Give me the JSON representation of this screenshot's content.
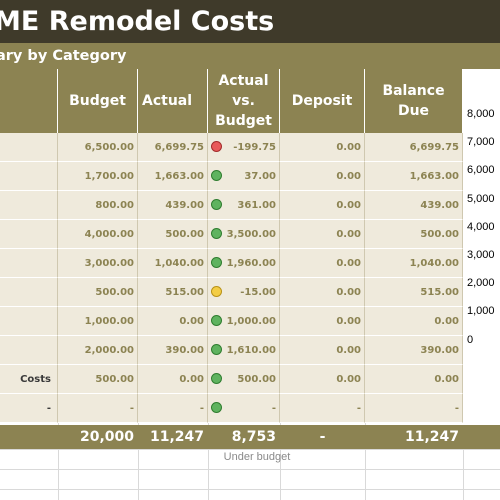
{
  "title": "ME Remodel Costs",
  "subtitle": "ary by Category",
  "headers": {
    "budget": "Budget",
    "actual": "Actual",
    "actual_vs_budget_1": "Actual",
    "actual_vs_budget_2": "vs.",
    "actual_vs_budget_3": "Budget",
    "deposit": "Deposit",
    "balance_due": "Balance Due"
  },
  "rows": [
    {
      "label": "",
      "budget": "6,500.00",
      "actual": "6,699.75",
      "status": "red",
      "variance": "-199.75",
      "deposit": "0.00",
      "balance": "6,699.75"
    },
    {
      "label": "",
      "budget": "1,700.00",
      "actual": "1,663.00",
      "status": "green",
      "variance": "37.00",
      "deposit": "0.00",
      "balance": "1,663.00"
    },
    {
      "label": "",
      "budget": "800.00",
      "actual": "439.00",
      "status": "green",
      "variance": "361.00",
      "deposit": "0.00",
      "balance": "439.00"
    },
    {
      "label": "",
      "budget": "4,000.00",
      "actual": "500.00",
      "status": "green",
      "variance": "3,500.00",
      "deposit": "0.00",
      "balance": "500.00"
    },
    {
      "label": "",
      "budget": "3,000.00",
      "actual": "1,040.00",
      "status": "green",
      "variance": "1,960.00",
      "deposit": "0.00",
      "balance": "1,040.00"
    },
    {
      "label": "",
      "budget": "500.00",
      "actual": "515.00",
      "status": "yellow",
      "variance": "-15.00",
      "deposit": "0.00",
      "balance": "515.00"
    },
    {
      "label": "",
      "budget": "1,000.00",
      "actual": "0.00",
      "status": "green",
      "variance": "1,000.00",
      "deposit": "0.00",
      "balance": "0.00"
    },
    {
      "label": "",
      "budget": "2,000.00",
      "actual": "390.00",
      "status": "green",
      "variance": "1,610.00",
      "deposit": "0.00",
      "balance": "390.00"
    },
    {
      "label": "Costs",
      "budget": "500.00",
      "actual": "0.00",
      "status": "green",
      "variance": "500.00",
      "deposit": "0.00",
      "balance": "0.00"
    },
    {
      "label": "-",
      "budget": "-",
      "actual": "-",
      "status": "green",
      "variance": "-",
      "deposit": "-",
      "balance": "-"
    }
  ],
  "totals": {
    "budget": "20,000",
    "actual": "11,247",
    "variance": "8,753",
    "deposit": "-",
    "balance": "11,247"
  },
  "status_text": "Under budget",
  "chart_ticks": [
    "8,000",
    "7,000",
    "6,000",
    "5,000",
    "4,000",
    "3,000",
    "2,000",
    "1,000",
    "0"
  ],
  "colors": {
    "title_bg": "#3f3a2a",
    "header_bg": "#8c8352",
    "row_bg": "#efeadc",
    "value_text": "#8c8352"
  }
}
